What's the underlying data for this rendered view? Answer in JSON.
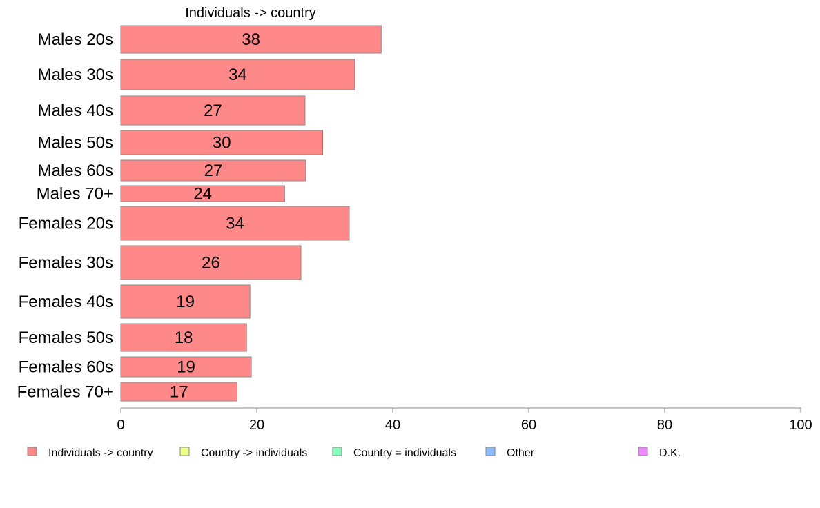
{
  "chart_data": {
    "type": "bar",
    "orientation": "horizontal",
    "title": "Individuals -> country",
    "categories": [
      "Males 20s",
      "Males 30s",
      "Males 40s",
      "Males 50s",
      "Males 60s",
      "Males 70+",
      "Females 20s",
      "Females 30s",
      "Females 40s",
      "Females 50s",
      "Females 60s",
      "Females 70+"
    ],
    "series": [
      {
        "name": "Individuals -> country",
        "color": "#ff8888",
        "values": [
          38.3,
          34.4,
          27.1,
          29.7,
          27.2,
          24.1,
          33.6,
          26.5,
          19.0,
          18.5,
          19.2,
          17.1
        ],
        "labels": [
          "38",
          "34",
          "27",
          "30",
          "27",
          "24",
          "34",
          "26",
          "19",
          "18",
          "19",
          "17"
        ]
      }
    ],
    "xlim": [
      0,
      100
    ],
    "xticks": [
      "0",
      "20",
      "40",
      "60",
      "80",
      "100"
    ],
    "grid": false,
    "legend_position": "bottom",
    "legend": [
      {
        "label": "Individuals -> country",
        "color": "#ff8888"
      },
      {
        "label": "Country -> individuals",
        "color": "#eeff88"
      },
      {
        "label": "Country = individuals",
        "color": "#88ffbb"
      },
      {
        "label": "Other",
        "color": "#88bbff"
      },
      {
        "label": "D.K.",
        "color": "#ee88ff"
      }
    ]
  }
}
